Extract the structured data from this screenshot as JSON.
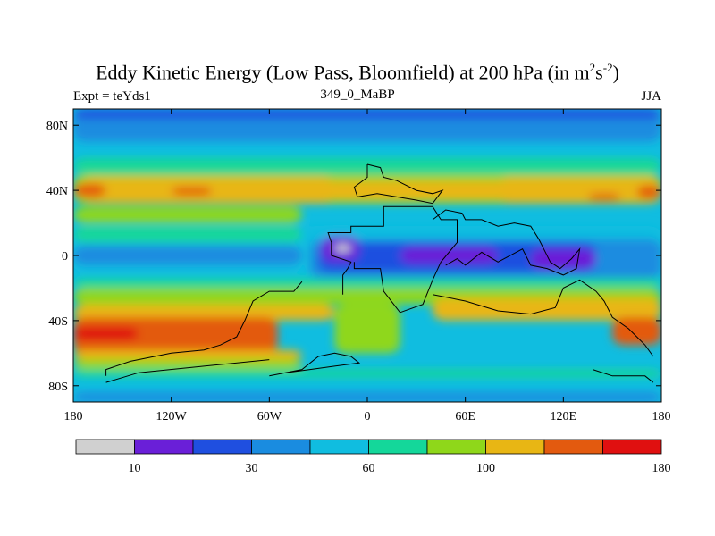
{
  "title": {
    "main": "Eddy Kinetic Energy (Low Pass, Bloomfield) at 200 hPa (in m",
    "sup1": "2",
    "s": "s",
    "sup2": "-2",
    "close": ")"
  },
  "subtitle_left": "Expt = teYds1",
  "subtitle_center": "349_0_MaBP",
  "subtitle_right": "JJA",
  "chart_data": {
    "type": "heatmap",
    "variable": "Eddy Kinetic Energy",
    "units": "m2 s-2",
    "level": "200 hPa",
    "season": "JJA",
    "xlim": [
      -180,
      180
    ],
    "ylim": [
      -90,
      90
    ],
    "x_ticks": [
      {
        "value": -180,
        "label": "180"
      },
      {
        "value": -120,
        "label": "120W"
      },
      {
        "value": -60,
        "label": "60W"
      },
      {
        "value": 0,
        "label": "0"
      },
      {
        "value": 60,
        "label": "60E"
      },
      {
        "value": 120,
        "label": "120E"
      },
      {
        "value": 180,
        "label": "180"
      }
    ],
    "y_ticks": [
      {
        "value": 80,
        "label": "80N"
      },
      {
        "value": 40,
        "label": "40N"
      },
      {
        "value": 0,
        "label": "0"
      },
      {
        "value": -40,
        "label": "40S"
      },
      {
        "value": -80,
        "label": "80S"
      }
    ],
    "levels": [
      10,
      20,
      30,
      45,
      60,
      80,
      100,
      120,
      150,
      180
    ],
    "level_labels": [
      {
        "value": 10,
        "label": "10"
      },
      {
        "value": 30,
        "label": "30"
      },
      {
        "value": 60,
        "label": "60"
      },
      {
        "value": 100,
        "label": "100"
      },
      {
        "value": 180,
        "label": "180"
      }
    ],
    "colors": [
      "#d0d0d0",
      "#6a1fd8",
      "#1f4fe0",
      "#1a8ce0",
      "#10bde0",
      "#14d79a",
      "#8fd71a",
      "#e8b614",
      "#e35a0f",
      "#e01010",
      "#e01010"
    ],
    "background_color": "#10bde0",
    "regions": [
      {
        "color": "#1a8ce0",
        "lon": [
          -180,
          180
        ],
        "lat": [
          70,
          90
        ]
      },
      {
        "color": "#1f4fe0",
        "lon": [
          -180,
          180
        ],
        "lat": [
          84,
          90
        ]
      },
      {
        "color": "#14d79a",
        "lon": [
          -180,
          180
        ],
        "lat": [
          50,
          60
        ]
      },
      {
        "color": "#8fd71a",
        "lon": [
          -180,
          180
        ],
        "lat": [
          32,
          50
        ]
      },
      {
        "color": "#e8b614",
        "lon": [
          -180,
          180
        ],
        "lat": [
          34,
          46
        ]
      },
      {
        "color": "#e8b614",
        "lon": [
          -175,
          -20
        ],
        "lat": [
          32,
          48
        ]
      },
      {
        "color": "#e8b614",
        "lon": [
          80,
          180
        ],
        "lat": [
          32,
          48
        ]
      },
      {
        "color": "#e35a0f",
        "lon": [
          -180,
          -160
        ],
        "lat": [
          36,
          44
        ]
      },
      {
        "color": "#e35a0f",
        "lon": [
          -120,
          -95
        ],
        "lat": [
          37,
          42
        ]
      },
      {
        "color": "#e35a0f",
        "lon": [
          135,
          155
        ],
        "lat": [
          34,
          38
        ]
      },
      {
        "color": "#e35a0f",
        "lon": [
          165,
          180
        ],
        "lat": [
          35,
          43
        ]
      },
      {
        "color": "#8fd71a",
        "lon": [
          -180,
          -40
        ],
        "lat": [
          20,
          30
        ]
      },
      {
        "color": "#14d79a",
        "lon": [
          -180,
          -40
        ],
        "lat": [
          8,
          18
        ]
      },
      {
        "color": "#10bde0",
        "lon": [
          -180,
          -40
        ],
        "lat": [
          -10,
          8
        ]
      },
      {
        "color": "#1a8ce0",
        "lon": [
          -180,
          -40
        ],
        "lat": [
          -6,
          6
        ]
      },
      {
        "color": "#10bde0",
        "lon": [
          -40,
          180
        ],
        "lat": [
          5,
          18
        ]
      },
      {
        "color": "#1a8ce0",
        "lon": [
          -35,
          180
        ],
        "lat": [
          -14,
          10
        ]
      },
      {
        "color": "#1f4fe0",
        "lon": [
          -30,
          140
        ],
        "lat": [
          -10,
          8
        ]
      },
      {
        "color": "#6a1fd8",
        "lon": [
          -28,
          -5
        ],
        "lat": [
          -4,
          12
        ]
      },
      {
        "color": "#d0d0d0",
        "lon": [
          -20,
          -10
        ],
        "lat": [
          2,
          7
        ]
      },
      {
        "color": "#6a1fd8",
        "lon": [
          20,
          80
        ],
        "lat": [
          -5,
          5
        ]
      },
      {
        "color": "#6a1fd8",
        "lon": [
          100,
          140
        ],
        "lat": [
          -8,
          4
        ]
      },
      {
        "color": "#14d79a",
        "lon": [
          -180,
          180
        ],
        "lat": [
          -20,
          -14
        ]
      },
      {
        "color": "#8fd71a",
        "lon": [
          -180,
          180
        ],
        "lat": [
          -30,
          -20
        ]
      },
      {
        "color": "#e8b614",
        "lon": [
          -180,
          -20
        ],
        "lat": [
          -40,
          -30
        ]
      },
      {
        "color": "#e8b614",
        "lon": [
          40,
          180
        ],
        "lat": [
          -40,
          -26
        ]
      },
      {
        "color": "#e35a0f",
        "lon": [
          -180,
          -55
        ],
        "lat": [
          -60,
          -38
        ]
      },
      {
        "color": "#e01010",
        "lon": [
          -180,
          -140
        ],
        "lat": [
          -52,
          -44
        ]
      },
      {
        "color": "#e35a0f",
        "lon": [
          150,
          180
        ],
        "lat": [
          -55,
          -38
        ]
      },
      {
        "color": "#e8b614",
        "lon": [
          -180,
          -40
        ],
        "lat": [
          -64,
          -58
        ]
      },
      {
        "color": "#8fd71a",
        "lon": [
          -180,
          -40
        ],
        "lat": [
          -70,
          -64
        ]
      },
      {
        "color": "#8fd71a",
        "lon": [
          -20,
          20
        ],
        "lat": [
          -60,
          -30
        ]
      },
      {
        "color": "#14d79a",
        "lon": [
          -180,
          180
        ],
        "lat": [
          -75,
          -70
        ]
      },
      {
        "color": "#1a8ce0",
        "lon": [
          -180,
          180
        ],
        "lat": [
          -90,
          -84
        ]
      }
    ],
    "coastlines": [
      [
        [
          -15,
          -24
        ],
        [
          -15,
          -12
        ],
        [
          -12,
          -8
        ],
        [
          -10,
          -4
        ],
        [
          -22,
          0
        ],
        [
          -22,
          8
        ],
        [
          -24,
          14
        ],
        [
          -10,
          14
        ],
        [
          -10,
          18
        ],
        [
          10,
          18
        ],
        [
          10,
          30
        ],
        [
          40,
          30
        ],
        [
          45,
          22
        ],
        [
          55,
          22
        ],
        [
          55,
          8
        ],
        [
          45,
          -4
        ],
        [
          40,
          -15
        ],
        [
          34,
          -30
        ],
        [
          20,
          -35
        ],
        [
          10,
          -22
        ],
        [
          8,
          -8
        ],
        [
          -8,
          -8
        ],
        [
          -8,
          -4
        ]
      ],
      [
        [
          0,
          56
        ],
        [
          8,
          54
        ],
        [
          10,
          48
        ],
        [
          18,
          46
        ],
        [
          30,
          40
        ],
        [
          40,
          38
        ],
        [
          46,
          40
        ],
        [
          40,
          32
        ],
        [
          30,
          34
        ],
        [
          18,
          36
        ],
        [
          6,
          38
        ],
        [
          -6,
          36
        ],
        [
          -8,
          42
        ],
        [
          0,
          48
        ],
        [
          0,
          56
        ]
      ],
      [
        [
          40,
          22
        ],
        [
          48,
          28
        ],
        [
          58,
          26
        ],
        [
          60,
          22
        ],
        [
          70,
          22
        ],
        [
          80,
          18
        ],
        [
          90,
          20
        ],
        [
          100,
          18
        ],
        [
          105,
          10
        ],
        [
          108,
          4
        ],
        [
          112,
          -4
        ],
        [
          118,
          -8
        ],
        [
          125,
          -2
        ],
        [
          130,
          4
        ],
        [
          128,
          -8
        ],
        [
          120,
          -12
        ],
        [
          110,
          -8
        ],
        [
          100,
          -6
        ],
        [
          95,
          4
        ],
        [
          80,
          -4
        ],
        [
          70,
          2
        ],
        [
          60,
          -6
        ],
        [
          55,
          -2
        ],
        [
          48,
          -6
        ]
      ],
      [
        [
          -40,
          -16
        ],
        [
          -45,
          -22
        ],
        [
          -60,
          -22
        ],
        [
          -70,
          -28
        ],
        [
          -75,
          -40
        ],
        [
          -80,
          -50
        ],
        [
          -90,
          -55
        ],
        [
          -100,
          -58
        ],
        [
          -120,
          -60
        ],
        [
          -145,
          -65
        ],
        [
          -160,
          -70
        ],
        [
          -160,
          -74
        ]
      ],
      [
        [
          -60,
          -74
        ],
        [
          -40,
          -70
        ],
        [
          -30,
          -62
        ],
        [
          -20,
          -60
        ],
        [
          -10,
          -62
        ],
        [
          -5,
          -66
        ],
        [
          -20,
          -68
        ],
        [
          -35,
          -70
        ],
        [
          -50,
          -72
        ]
      ],
      [
        [
          40,
          -24
        ],
        [
          60,
          -28
        ],
        [
          80,
          -34
        ],
        [
          100,
          -36
        ],
        [
          115,
          -32
        ],
        [
          120,
          -20
        ],
        [
          130,
          -15
        ],
        [
          140,
          -22
        ],
        [
          145,
          -28
        ],
        [
          150,
          -38
        ],
        [
          160,
          -45
        ],
        [
          170,
          -55
        ],
        [
          175,
          -62
        ]
      ],
      [
        [
          138,
          -70
        ],
        [
          150,
          -74
        ],
        [
          170,
          -74
        ],
        [
          175,
          -78
        ]
      ],
      [
        [
          -160,
          -78
        ],
        [
          -140,
          -72
        ],
        [
          -100,
          -68
        ],
        [
          -60,
          -64
        ]
      ]
    ]
  }
}
